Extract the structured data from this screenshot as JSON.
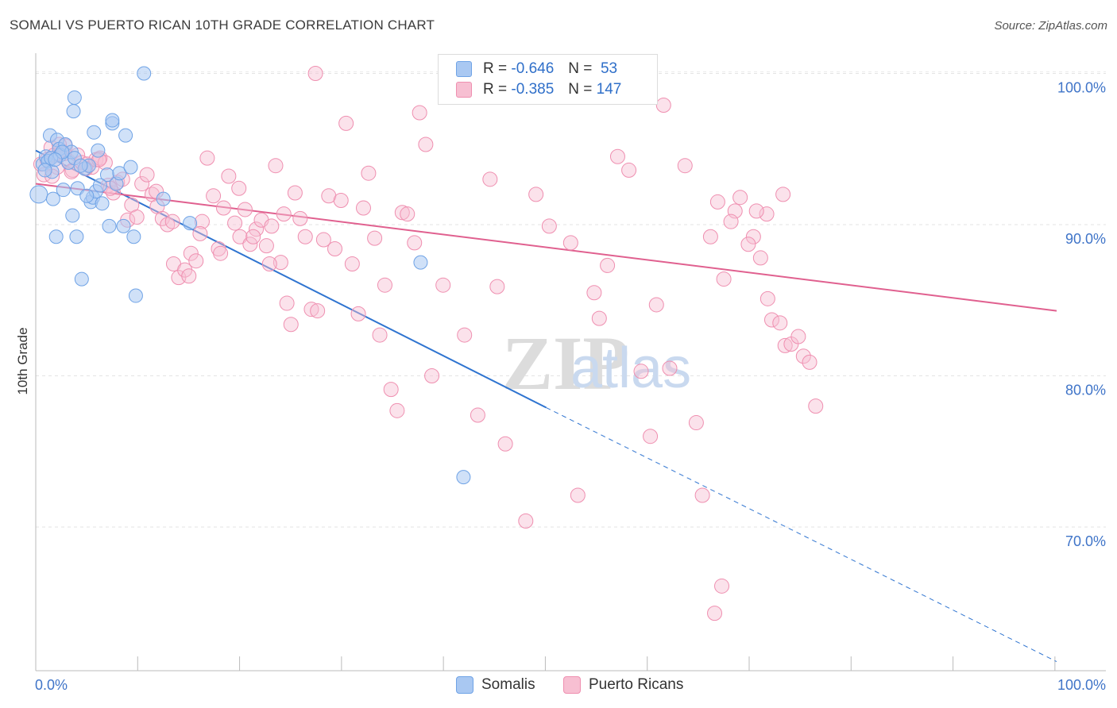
{
  "title": "SOMALI VS PUERTO RICAN 10TH GRADE CORRELATION CHART",
  "source": "Source: ZipAtlas.com",
  "watermark": {
    "zip": "ZIP",
    "atlas": "atlas"
  },
  "colors": {
    "somali": "#6fa3e6",
    "somali_fill": "#a9c8f2",
    "somali_line": "#2f74d0",
    "puerto": "#ef8fb0",
    "puerto_fill": "#f7bfd2",
    "puerto_line": "#e0608f",
    "axis_label": "#3f74c8",
    "grid": "#e3e3e3"
  },
  "legend": {
    "rows": [
      {
        "r_label": "R =",
        "r_value": "-0.646",
        "n_label": "N =",
        "n_value": "53"
      },
      {
        "r_label": "R =",
        "r_value": "-0.385",
        "n_label": "N =",
        "n_value": "147"
      }
    ]
  },
  "bottom_legend": {
    "somali": "Somalis",
    "puerto": "Puerto Ricans"
  },
  "chart_data": {
    "type": "scatter",
    "ylabel": "10th Grade",
    "x_ticks": [
      "0.0%",
      "100.0%"
    ],
    "y_ticks": [
      "100.0%",
      "90.0%",
      "80.0%",
      "70.0%"
    ],
    "y_tick_values": [
      100,
      90,
      80,
      70
    ],
    "xlim": [
      0,
      100
    ],
    "ylim": [
      60.5,
      101.6
    ],
    "grid": true,
    "series": [
      {
        "name": "Somalis",
        "r": -0.646,
        "n": 53,
        "trend": {
          "x0": 0,
          "y0": 94.9,
          "x1": 50,
          "y1": 77.9,
          "dashed_to_x": 100,
          "dashed_to_y": 61.1
        },
        "points": [
          [
            0.3,
            92.0
          ],
          [
            0.7,
            94.0
          ],
          [
            1.0,
            94.5
          ],
          [
            1.2,
            94.2
          ],
          [
            1.4,
            95.9
          ],
          [
            1.6,
            93.5
          ],
          [
            1.7,
            91.7
          ],
          [
            2.0,
            89.2
          ],
          [
            2.1,
            95.6
          ],
          [
            2.3,
            95.0
          ],
          [
            2.4,
            94.6
          ],
          [
            2.7,
            92.3
          ],
          [
            2.9,
            95.3
          ],
          [
            3.2,
            94.1
          ],
          [
            3.5,
            94.8
          ],
          [
            3.6,
            90.6
          ],
          [
            3.8,
            94.4
          ],
          [
            4.0,
            89.2
          ],
          [
            4.1,
            92.4
          ],
          [
            4.5,
            86.4
          ],
          [
            4.8,
            93.7
          ],
          [
            5.2,
            93.9
          ],
          [
            5.4,
            91.5
          ],
          [
            5.6,
            91.8
          ],
          [
            5.9,
            92.2
          ],
          [
            6.1,
            94.9
          ],
          [
            6.5,
            91.4
          ],
          [
            7.0,
            93.3
          ],
          [
            7.2,
            89.9
          ],
          [
            7.5,
            96.7
          ],
          [
            7.9,
            92.7
          ],
          [
            8.2,
            93.4
          ],
          [
            8.6,
            89.9
          ],
          [
            9.3,
            93.8
          ],
          [
            9.6,
            89.2
          ],
          [
            9.8,
            85.3
          ],
          [
            10.6,
            100.0
          ],
          [
            12.5,
            91.7
          ],
          [
            15.1,
            90.1
          ],
          [
            3.8,
            98.4
          ],
          [
            3.7,
            97.5
          ],
          [
            5.7,
            96.1
          ],
          [
            7.5,
            96.9
          ],
          [
            8.8,
            95.9
          ],
          [
            37.7,
            87.5
          ],
          [
            41.9,
            73.3
          ],
          [
            1.5,
            94.4
          ],
          [
            2.6,
            94.8
          ],
          [
            4.4,
            93.9
          ],
          [
            6.3,
            92.6
          ],
          [
            0.9,
            93.6
          ],
          [
            1.9,
            94.3
          ],
          [
            5.0,
            91.9
          ]
        ]
      },
      {
        "name": "Puerto Ricans",
        "r": -0.385,
        "n": 147,
        "trend": {
          "x0": 0,
          "y0": 92.7,
          "x1": 100,
          "y1": 84.3
        },
        "points": [
          [
            0.5,
            94.0
          ],
          [
            0.8,
            93.3
          ],
          [
            1.1,
            94.3
          ],
          [
            1.5,
            95.1
          ],
          [
            1.8,
            94.6
          ],
          [
            2.1,
            93.8
          ],
          [
            2.5,
            94.9
          ],
          [
            2.9,
            95.2
          ],
          [
            3.2,
            94.2
          ],
          [
            3.6,
            93.6
          ],
          [
            4.1,
            94.6
          ],
          [
            4.5,
            94.1
          ],
          [
            5.0,
            94.0
          ],
          [
            5.5,
            93.8
          ],
          [
            5.9,
            94.3
          ],
          [
            6.3,
            94.4
          ],
          [
            6.8,
            94.1
          ],
          [
            7.1,
            92.6
          ],
          [
            7.6,
            92.1
          ],
          [
            8.0,
            92.8
          ],
          [
            8.5,
            93.0
          ],
          [
            9.0,
            90.3
          ],
          [
            9.4,
            91.3
          ],
          [
            9.9,
            90.5
          ],
          [
            10.4,
            92.7
          ],
          [
            10.9,
            93.3
          ],
          [
            11.4,
            92.0
          ],
          [
            11.9,
            91.2
          ],
          [
            12.4,
            90.4
          ],
          [
            12.9,
            90.0
          ],
          [
            13.5,
            87.4
          ],
          [
            14.0,
            86.5
          ],
          [
            14.6,
            87.0
          ],
          [
            15.2,
            88.1
          ],
          [
            15.7,
            87.6
          ],
          [
            16.3,
            90.2
          ],
          [
            16.8,
            94.4
          ],
          [
            17.4,
            91.9
          ],
          [
            17.9,
            88.4
          ],
          [
            18.4,
            91.1
          ],
          [
            18.9,
            93.2
          ],
          [
            19.5,
            90.1
          ],
          [
            20.0,
            89.2
          ],
          [
            20.5,
            91.0
          ],
          [
            21.0,
            88.7
          ],
          [
            21.6,
            89.7
          ],
          [
            22.1,
            90.3
          ],
          [
            22.6,
            88.6
          ],
          [
            23.1,
            89.9
          ],
          [
            23.5,
            93.9
          ],
          [
            24.0,
            87.5
          ],
          [
            24.6,
            84.8
          ],
          [
            25.0,
            83.4
          ],
          [
            25.4,
            92.1
          ],
          [
            25.9,
            90.4
          ],
          [
            26.4,
            89.2
          ],
          [
            27.0,
            84.4
          ],
          [
            27.6,
            84.3
          ],
          [
            28.2,
            89.0
          ],
          [
            28.7,
            91.9
          ],
          [
            29.3,
            88.4
          ],
          [
            29.9,
            91.6
          ],
          [
            30.4,
            96.7
          ],
          [
            31.0,
            87.4
          ],
          [
            31.6,
            84.1
          ],
          [
            32.1,
            91.1
          ],
          [
            32.6,
            93.4
          ],
          [
            33.2,
            89.1
          ],
          [
            33.7,
            82.7
          ],
          [
            34.2,
            86.0
          ],
          [
            34.8,
            79.1
          ],
          [
            35.4,
            77.7
          ],
          [
            35.9,
            90.8
          ],
          [
            36.4,
            90.7
          ],
          [
            37.1,
            88.8
          ],
          [
            37.6,
            97.4
          ],
          [
            38.2,
            95.3
          ],
          [
            38.8,
            80.0
          ],
          [
            39.9,
            86.0
          ],
          [
            41.4,
            100.0
          ],
          [
            42.0,
            82.7
          ],
          [
            43.3,
            77.4
          ],
          [
            44.5,
            93.0
          ],
          [
            45.2,
            85.9
          ],
          [
            46.0,
            75.5
          ],
          [
            47.2,
            100.0
          ],
          [
            48.0,
            70.4
          ],
          [
            49.0,
            92.0
          ],
          [
            50.3,
            89.9
          ],
          [
            51.5,
            100.0
          ],
          [
            52.4,
            88.8
          ],
          [
            53.1,
            72.1
          ],
          [
            54.7,
            85.5
          ],
          [
            56.0,
            87.3
          ],
          [
            57.0,
            94.5
          ],
          [
            58.1,
            93.6
          ],
          [
            59.3,
            80.3
          ],
          [
            60.2,
            76.0
          ],
          [
            61.5,
            97.9
          ],
          [
            62.1,
            80.5
          ],
          [
            63.6,
            93.9
          ],
          [
            64.7,
            76.9
          ],
          [
            65.3,
            72.1
          ],
          [
            66.1,
            89.2
          ],
          [
            66.8,
            91.5
          ],
          [
            67.4,
            86.4
          ],
          [
            68.5,
            90.9
          ],
          [
            69.0,
            91.8
          ],
          [
            70.3,
            89.2
          ],
          [
            71.0,
            87.8
          ],
          [
            71.7,
            85.1
          ],
          [
            72.1,
            83.7
          ],
          [
            72.9,
            83.5
          ],
          [
            73.4,
            82.0
          ],
          [
            74.0,
            82.1
          ],
          [
            74.7,
            82.6
          ],
          [
            75.2,
            81.3
          ],
          [
            75.8,
            80.9
          ],
          [
            76.4,
            78.0
          ],
          [
            73.2,
            92.0
          ],
          [
            71.6,
            90.7
          ],
          [
            70.6,
            90.9
          ],
          [
            69.8,
            88.7
          ],
          [
            68.1,
            90.2
          ],
          [
            66.5,
            64.3
          ],
          [
            67.2,
            66.1
          ],
          [
            60.8,
            84.7
          ],
          [
            55.2,
            83.8
          ],
          [
            48.7,
            99.0
          ],
          [
            44.9,
            100.0
          ],
          [
            27.4,
            100.0
          ],
          [
            7.3,
            92.4
          ],
          [
            6.2,
            94.3
          ],
          [
            4.9,
            93.7
          ],
          [
            3.5,
            93.5
          ],
          [
            2.3,
            95.3
          ],
          [
            1.6,
            93.2
          ],
          [
            2.8,
            94.7
          ],
          [
            11.8,
            92.2
          ],
          [
            13.4,
            90.2
          ],
          [
            15.0,
            86.6
          ],
          [
            16.1,
            89.4
          ],
          [
            18.1,
            88.1
          ],
          [
            19.9,
            92.4
          ],
          [
            21.3,
            89.2
          ],
          [
            22.9,
            87.4
          ],
          [
            24.3,
            90.7
          ]
        ]
      }
    ]
  }
}
